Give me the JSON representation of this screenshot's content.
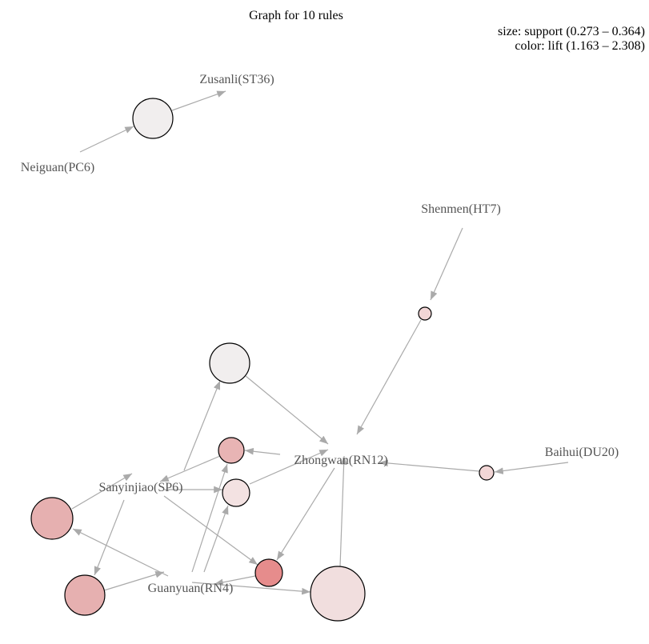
{
  "title": "Graph for 10 rules",
  "legend": {
    "size": "size: support (0.273 – 0.364)",
    "color": "color: lift (1.163 – 2.308)"
  },
  "items": [
    "Zusanli(ST36)",
    "Neiguan(PC6)",
    "Shenmen(HT7)",
    "Baihui(DU20)",
    "Zhongwan(RN12)",
    "Sanyinjiao(SP6)",
    "Guanyuan(RN4)"
  ]
}
